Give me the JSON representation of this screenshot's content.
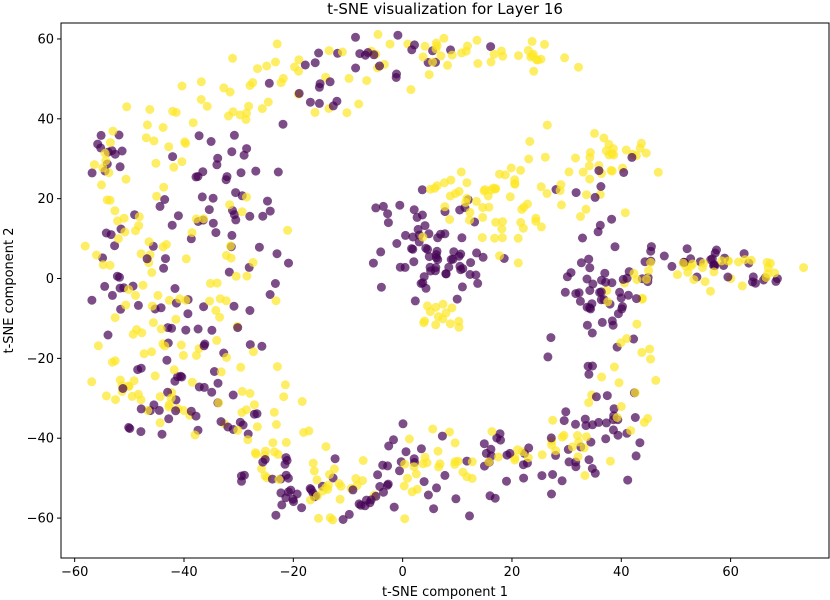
{
  "chart_data": {
    "type": "scatter",
    "title": "t-SNE visualization for Layer 16",
    "xlabel": "t-SNE component 1",
    "ylabel": "t-SNE component 2",
    "xlim": [
      -62.5,
      78
    ],
    "ylim": [
      -70,
      64
    ],
    "xticks": [
      -60,
      -40,
      -20,
      0,
      20,
      40,
      60
    ],
    "yticks": [
      -60,
      -40,
      -20,
      0,
      20,
      40,
      60
    ],
    "grid": false,
    "legend": "none",
    "marker_alpha": 0.7,
    "colors": {
      "class_0": "#440154",
      "class_1": "#fde725"
    },
    "clusters": [
      {
        "label": 0,
        "center": [
          -53,
          31
        ],
        "spread": [
          3,
          3
        ],
        "n": 12
      },
      {
        "label": 1,
        "center": [
          -55,
          28
        ],
        "spread": [
          2,
          3
        ],
        "n": 8
      },
      {
        "label": 1,
        "center": [
          -45,
          35
        ],
        "spread": [
          5,
          5
        ],
        "n": 14
      },
      {
        "label": 0,
        "center": [
          -30,
          27
        ],
        "spread": [
          4,
          6
        ],
        "n": 14
      },
      {
        "label": 1,
        "center": [
          -30,
          44
        ],
        "spread": [
          6,
          3
        ],
        "n": 18
      },
      {
        "label": 1,
        "center": [
          -20,
          50
        ],
        "spread": [
          6,
          4
        ],
        "n": 14
      },
      {
        "label": 0,
        "center": [
          -17,
          45
        ],
        "spread": [
          4,
          4
        ],
        "n": 10
      },
      {
        "label": 1,
        "center": [
          -5,
          55
        ],
        "spread": [
          7,
          4
        ],
        "n": 16
      },
      {
        "label": 0,
        "center": [
          -8,
          55
        ],
        "spread": [
          6,
          3
        ],
        "n": 10
      },
      {
        "label": 0,
        "center": [
          5,
          57
        ],
        "spread": [
          6,
          2
        ],
        "n": 10
      },
      {
        "label": 1,
        "center": [
          15,
          57
        ],
        "spread": [
          8,
          2
        ],
        "n": 18
      },
      {
        "label": 1,
        "center": [
          25,
          55
        ],
        "spread": [
          5,
          1.5
        ],
        "n": 12
      },
      {
        "label": 0,
        "center": [
          -50,
          2
        ],
        "spread": [
          4,
          8
        ],
        "n": 22
      },
      {
        "label": 1,
        "center": [
          -48,
          10
        ],
        "spread": [
          5,
          12
        ],
        "n": 32
      },
      {
        "label": 0,
        "center": [
          -35,
          10
        ],
        "spread": [
          6,
          14
        ],
        "n": 44
      },
      {
        "label": 1,
        "center": [
          -35,
          0
        ],
        "spread": [
          7,
          12
        ],
        "n": 28
      },
      {
        "label": 0,
        "center": [
          -40,
          -18
        ],
        "spread": [
          5,
          5
        ],
        "n": 16
      },
      {
        "label": 1,
        "center": [
          -40,
          -17
        ],
        "spread": [
          6,
          6
        ],
        "n": 16
      },
      {
        "label": 1,
        "center": [
          -52,
          -25
        ],
        "spread": [
          3,
          3
        ],
        "n": 14
      },
      {
        "label": 0,
        "center": [
          -47,
          -33
        ],
        "spread": [
          4,
          6
        ],
        "n": 12
      },
      {
        "label": 1,
        "center": [
          -43,
          -33
        ],
        "spread": [
          4,
          3
        ],
        "n": 12
      },
      {
        "label": 0,
        "center": [
          -33,
          -33
        ],
        "spread": [
          6,
          5
        ],
        "n": 20
      },
      {
        "label": 1,
        "center": [
          -28,
          -30
        ],
        "spread": [
          4,
          7
        ],
        "n": 18
      },
      {
        "label": 1,
        "center": [
          -25,
          -42
        ],
        "spread": [
          3,
          3
        ],
        "n": 14
      },
      {
        "label": 0,
        "center": [
          -24,
          -49
        ],
        "spread": [
          4,
          4
        ],
        "n": 16
      },
      {
        "label": 0,
        "center": [
          -20,
          -55
        ],
        "spread": [
          4,
          3
        ],
        "n": 14
      },
      {
        "label": 1,
        "center": [
          -12,
          -51
        ],
        "spread": [
          5,
          3
        ],
        "n": 22
      },
      {
        "label": 0,
        "center": [
          -8,
          -55
        ],
        "spread": [
          4,
          4
        ],
        "n": 12
      },
      {
        "label": 1,
        "center": [
          -15,
          -60
        ],
        "spread": [
          2,
          2
        ],
        "n": 4
      },
      {
        "label": 0,
        "center": [
          0,
          -46
        ],
        "spread": [
          3,
          5
        ],
        "n": 10
      },
      {
        "label": 1,
        "center": [
          4,
          -48
        ],
        "spread": [
          3,
          5
        ],
        "n": 12
      },
      {
        "label": 0,
        "center": [
          6,
          -55
        ],
        "spread": [
          4,
          3
        ],
        "n": 8
      },
      {
        "label": 0,
        "center": [
          12,
          -43
        ],
        "spread": [
          7,
          3
        ],
        "n": 16
      },
      {
        "label": 1,
        "center": [
          12,
          -46
        ],
        "spread": [
          8,
          3
        ],
        "n": 16
      },
      {
        "label": 0,
        "center": [
          24,
          -46
        ],
        "spread": [
          6,
          3
        ],
        "n": 14
      },
      {
        "label": 1,
        "center": [
          25,
          -44
        ],
        "spread": [
          6,
          3
        ],
        "n": 10
      },
      {
        "label": 0,
        "center": [
          34,
          -44
        ],
        "spread": [
          6,
          4
        ],
        "n": 16
      },
      {
        "label": 1,
        "center": [
          33,
          -40
        ],
        "spread": [
          4,
          3
        ],
        "n": 8
      },
      {
        "label": 0,
        "center": [
          38,
          -35
        ],
        "spread": [
          3,
          5
        ],
        "n": 14
      },
      {
        "label": 1,
        "center": [
          41,
          -33
        ],
        "spread": [
          3,
          5
        ],
        "n": 12
      },
      {
        "label": 0,
        "center": [
          34,
          -12
        ],
        "spread": [
          4,
          12
        ],
        "n": 40
      },
      {
        "label": 1,
        "center": [
          40,
          -16
        ],
        "spread": [
          3,
          8
        ],
        "n": 12
      },
      {
        "label": 0,
        "center": [
          38,
          -3
        ],
        "spread": [
          4,
          3
        ],
        "n": 16
      },
      {
        "label": 0,
        "center": [
          47,
          4
        ],
        "spread": [
          5,
          2
        ],
        "n": 14
      },
      {
        "label": 1,
        "center": [
          50,
          2
        ],
        "spread": [
          6,
          2
        ],
        "n": 12
      },
      {
        "label": 0,
        "center": [
          57,
          4
        ],
        "spread": [
          4,
          1.5
        ],
        "n": 12
      },
      {
        "label": 1,
        "center": [
          57,
          3
        ],
        "spread": [
          4,
          2
        ],
        "n": 12
      },
      {
        "label": 0,
        "center": [
          66,
          0
        ],
        "spread": [
          3,
          1.5
        ],
        "n": 8
      },
      {
        "label": 1,
        "center": [
          67,
          3
        ],
        "spread": [
          3,
          2
        ],
        "n": 8
      },
      {
        "label": 0,
        "center": [
          4,
          11
        ],
        "spread": [
          5,
          5
        ],
        "n": 32
      },
      {
        "label": 0,
        "center": [
          8,
          4
        ],
        "spread": [
          5,
          3.5
        ],
        "n": 38
      },
      {
        "label": 1,
        "center": [
          7,
          -9
        ],
        "spread": [
          3,
          2
        ],
        "n": 14
      },
      {
        "label": 1,
        "center": [
          8,
          21
        ],
        "spread": [
          3,
          3
        ],
        "n": 8
      },
      {
        "label": 1,
        "center": [
          19,
          18
        ],
        "spread": [
          6,
          7
        ],
        "n": 46
      },
      {
        "label": 1,
        "center": [
          37,
          32
        ],
        "spread": [
          5,
          3
        ],
        "n": 26
      },
      {
        "label": 1,
        "center": [
          30,
          23
        ],
        "spread": [
          6,
          4
        ],
        "n": 14
      },
      {
        "label": 0,
        "center": [
          38,
          25
        ],
        "spread": [
          3,
          3
        ],
        "n": 6
      }
    ]
  }
}
